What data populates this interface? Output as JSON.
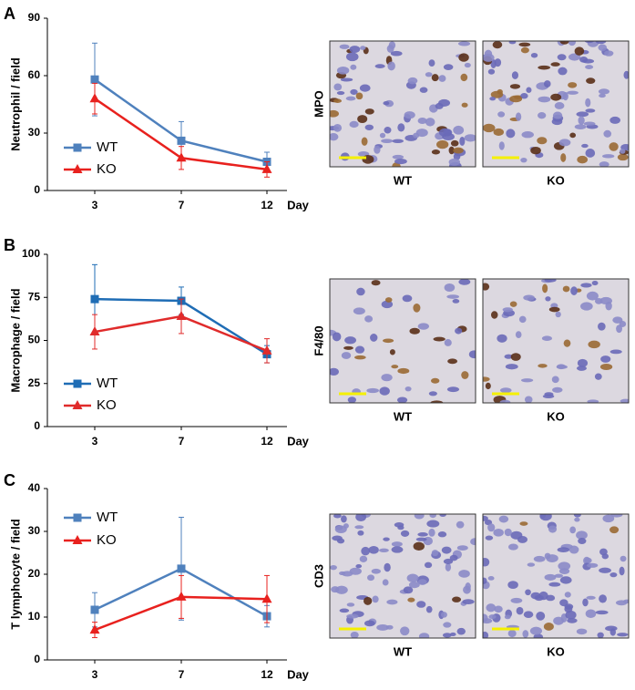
{
  "chart_data": [
    {
      "type": "line",
      "panel": "A",
      "ylabel": "Neutrophil / field",
      "xlabel": "Day",
      "categories": [
        "3",
        "7",
        "12"
      ],
      "ylim": [
        0,
        90
      ],
      "yticks": [
        0,
        30,
        60,
        90
      ],
      "legend": "lower left",
      "series": [
        {
          "name": "WT",
          "color": "#4f81bd",
          "marker": "square",
          "values": [
            58,
            26,
            15
          ],
          "errors": [
            19,
            10,
            5
          ]
        },
        {
          "name": "KO",
          "color": "#e8211e",
          "marker": "triangle",
          "values": [
            48,
            17,
            11
          ],
          "errors": [
            8,
            6,
            4
          ]
        }
      ],
      "stain": "MPO",
      "image_labels": [
        "WT",
        "KO"
      ]
    },
    {
      "type": "line",
      "panel": "B",
      "ylabel": "Macrophage / field",
      "xlabel": "Day",
      "categories": [
        "3",
        "7",
        "12"
      ],
      "ylim": [
        0,
        100
      ],
      "yticks": [
        0,
        25,
        50,
        75,
        100
      ],
      "legend": "lower left",
      "series": [
        {
          "name": "WT",
          "color": "#1f6db5",
          "marker": "square",
          "values": [
            74,
            73,
            42
          ],
          "errors": [
            20,
            8,
            5
          ]
        },
        {
          "name": "KO",
          "color": "#e02b2b",
          "marker": "triangle",
          "values": [
            55,
            64,
            44
          ],
          "errors": [
            10,
            10,
            7
          ]
        }
      ],
      "stain": "F4/80",
      "image_labels": [
        "WT",
        "KO"
      ]
    },
    {
      "type": "line",
      "panel": "C",
      "ylabel": "T lymphocyte / field",
      "xlabel": "Day",
      "categories": [
        "3",
        "7",
        "12"
      ],
      "ylim": [
        0,
        40
      ],
      "yticks": [
        0,
        10,
        20,
        30,
        40
      ],
      "legend": "upper left",
      "series": [
        {
          "name": "WT",
          "color": "#4f81bd",
          "marker": "square",
          "values": [
            11.7,
            21.3,
            10.2
          ],
          "errors": [
            4,
            12,
            2.5
          ]
        },
        {
          "name": "KO",
          "color": "#e8211e",
          "marker": "triangle",
          "values": [
            7,
            14.7,
            14.2
          ],
          "errors": [
            1.8,
            5,
            5.5
          ]
        }
      ],
      "stain": "CD3",
      "image_labels": [
        "WT",
        "KO"
      ]
    }
  ]
}
